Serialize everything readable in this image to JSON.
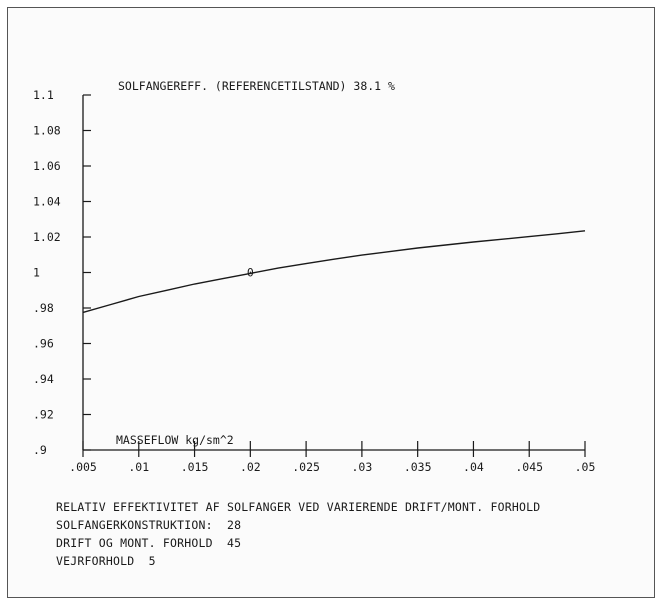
{
  "chart_data": {
    "type": "line",
    "title": "SOLFANGEREFF. (REFERENCETILSTAND)  38.1 %",
    "xlabel": "MASSEFLOW kg/sm^2",
    "ylabel": "",
    "xlim": [
      0.005,
      0.05
    ],
    "ylim": [
      0.9,
      1.1
    ],
    "x_ticks": [
      0.005,
      0.01,
      0.015,
      0.02,
      0.025,
      0.03,
      0.035,
      0.04,
      0.045,
      0.05
    ],
    "x_tick_labels": [
      ".005",
      ".01",
      ".015",
      ".02",
      ".025",
      ".03",
      ".035",
      ".04",
      ".045",
      ".05"
    ],
    "y_ticks": [
      0.9,
      0.92,
      0.94,
      0.96,
      0.98,
      1.0,
      1.02,
      1.04,
      1.06,
      1.08,
      1.1
    ],
    "y_tick_labels": [
      ".9",
      ".92",
      ".94",
      ".96",
      ".98",
      "1",
      "1.02",
      "1.04",
      "1.06",
      "1.08",
      "1.1"
    ],
    "grid": false,
    "series": [
      {
        "x": [
          0.005,
          0.0075,
          0.01,
          0.0125,
          0.015,
          0.0175,
          0.02,
          0.0225,
          0.025,
          0.0275,
          0.03,
          0.0325,
          0.035,
          0.0375,
          0.04,
          0.0425,
          0.045,
          0.0475,
          0.05
        ],
        "y": [
          0.9775,
          0.982,
          0.9865,
          0.99,
          0.9935,
          0.9965,
          0.9995,
          1.0025,
          1.005,
          1.0075,
          1.0098,
          1.0118,
          1.0138,
          1.0155,
          1.0172,
          1.0187,
          1.0202,
          1.0218,
          1.0235
        ]
      }
    ],
    "marker": {
      "x": 0.02,
      "y": 1.0,
      "symbol": "0"
    }
  },
  "caption": {
    "line1": "RELATIV EFFEKTIVITET AF SOLFANGER VED VARIERENDE DRIFT/MONT. FORHOLD",
    "line2": "SOLFANGERKONSTRUKTION:  28",
    "line3": "DRIFT OG MONT. FORHOLD  45",
    "line4": "VEJRFORHOLD  5"
  },
  "colors": {
    "ink": "#1a1a1a",
    "frame": "#555555"
  }
}
